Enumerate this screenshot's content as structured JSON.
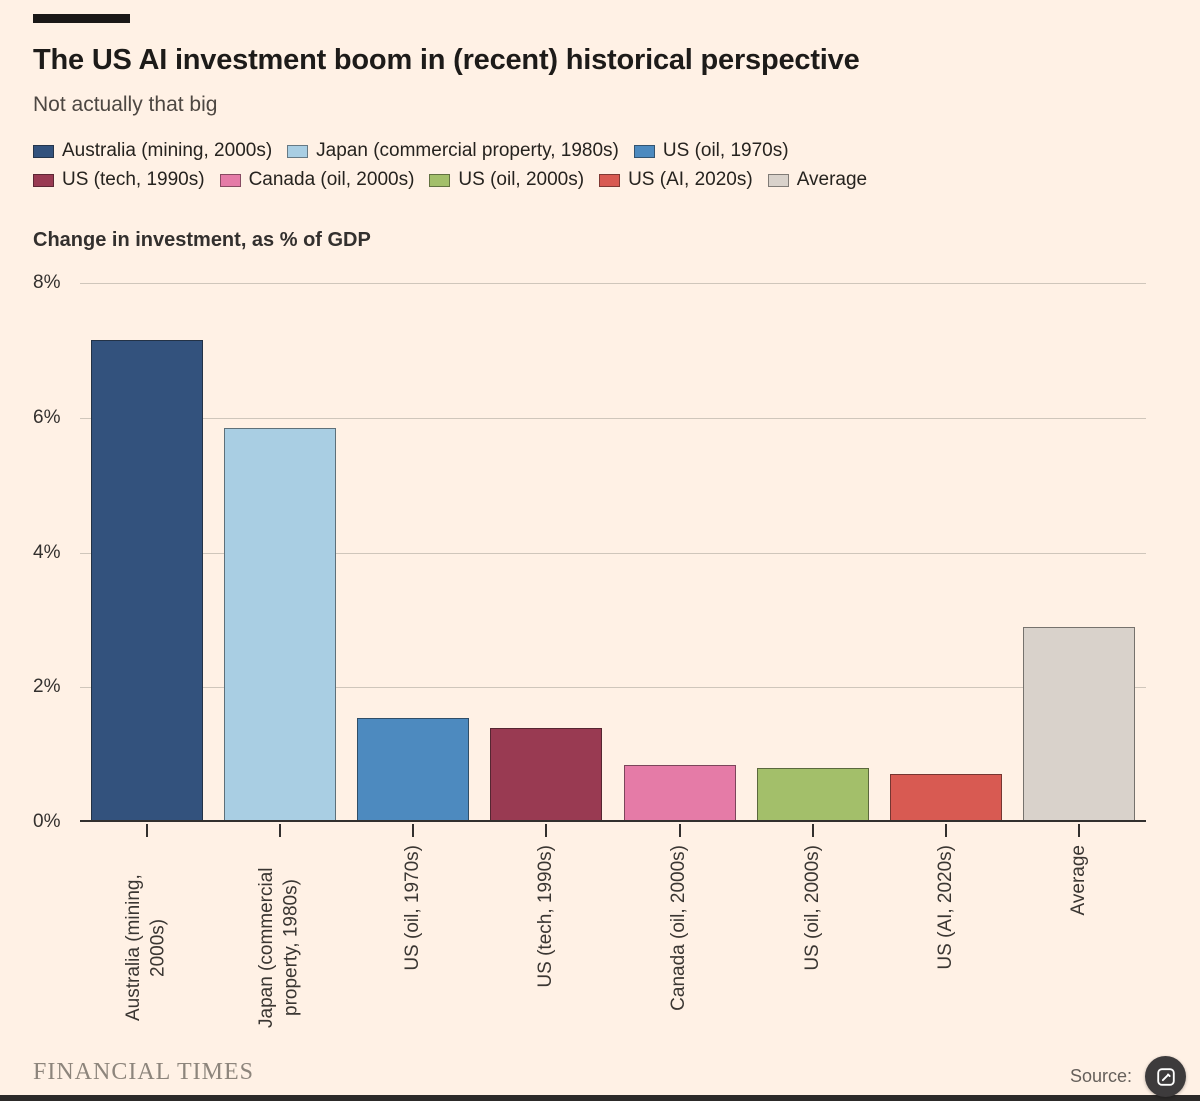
{
  "chart_data": {
    "type": "bar",
    "title": "The US AI investment boom in (recent) historical perspective",
    "subtitle": "Not actually that big",
    "axis_note": "Change in investment, as % of GDP",
    "categories": [
      "Australia (mining, 2000s)",
      "Japan (commercial property, 1980s)",
      "US (oil, 1970s)",
      "US (tech, 1990s)",
      "Canada (oil, 2000s)",
      "US (oil, 2000s)",
      "US (AI, 2020s)",
      "Average"
    ],
    "values": [
      7.15,
      5.85,
      1.55,
      1.4,
      0.85,
      0.8,
      0.72,
      2.9
    ],
    "bar_colors": [
      "#33527d",
      "#a9cee3",
      "#4d8abf",
      "#993a52",
      "#e57ba7",
      "#a3bf6a",
      "#d85a52",
      "#d9d2cb"
    ],
    "ylim": [
      0,
      8
    ],
    "yticks": [
      0,
      2,
      4,
      6,
      8
    ],
    "ytick_labels": [
      "0%",
      "2%",
      "4%",
      "6%",
      "8%"
    ],
    "grid": true,
    "legend_position": "top",
    "legend_rows": [
      [
        0,
        1,
        2
      ],
      [
        3,
        4,
        5,
        6,
        7
      ]
    ]
  },
  "footer": {
    "brand": "FINANCIAL TIMES",
    "source_label": "Source:"
  },
  "overlay": {
    "badge_icon": "edit-badge-icon"
  },
  "colors": {
    "background": "#fff1e5",
    "gridline": "#cfc6bb",
    "axis": "#33302e",
    "title_text": "#1d1b19",
    "muted_text": "#66605b",
    "brand_text": "#8d857c",
    "badge_background": "#3d3b3c",
    "top_rule": "#1a1817"
  }
}
